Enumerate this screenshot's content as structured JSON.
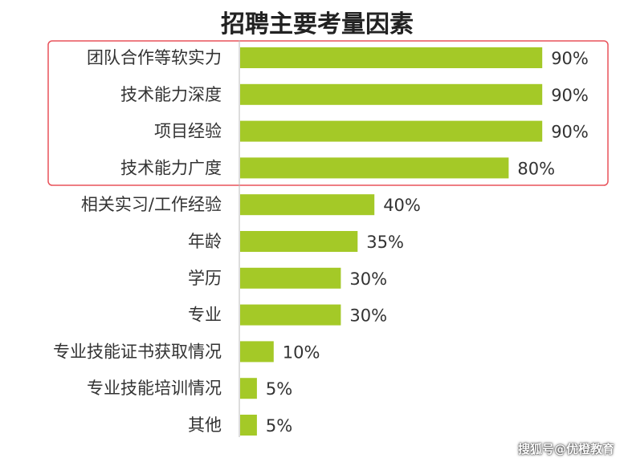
{
  "chart_data": {
    "type": "bar",
    "orientation": "horizontal",
    "title": "招聘主要考量因素",
    "categories": [
      "团队合作等软实力",
      "技术能力深度",
      "项目经验",
      "技术能力广度",
      "相关实习/工作经验",
      "年龄",
      "学历",
      "专业",
      "专业技能证书获取情况",
      "专业技能培训情况",
      "其他"
    ],
    "values": [
      90,
      90,
      90,
      80,
      40,
      35,
      30,
      30,
      10,
      5,
      5
    ],
    "value_labels": [
      "90%",
      "90%",
      "90%",
      "80%",
      "40%",
      "35%",
      "30%",
      "30%",
      "10%",
      "5%",
      "5%"
    ],
    "xlim": [
      0,
      100
    ],
    "grid": false,
    "legend": "none",
    "highlight": {
      "from_index": 0,
      "to_index": 3
    }
  },
  "colors": {
    "bar": "#a4c927",
    "highlight_border": "#e8525a",
    "axis": "#bbbbbb",
    "text": "#333333"
  },
  "watermark": "搜狐号@优橙教育"
}
